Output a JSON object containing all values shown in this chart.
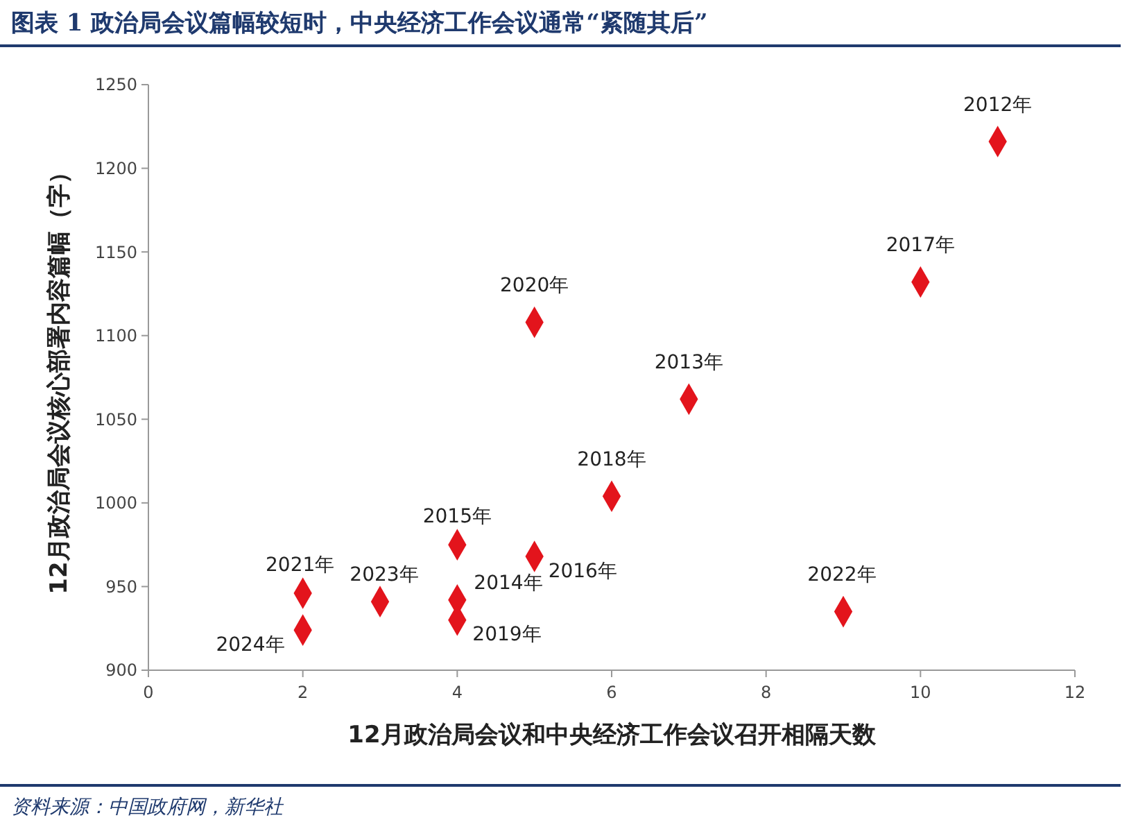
{
  "chart_data": {
    "type": "scatter",
    "title": "图表 1   政治局会议篇幅较短时，中央经济工作会议通常“紧随其后”",
    "xlabel": "12月政治局会议和中央经济工作会议召开相隔天数",
    "ylabel": "12月政治局会议核心部署内容篇幅（字）",
    "x": [
      11,
      10,
      5,
      7,
      6,
      4,
      5,
      2,
      3,
      4,
      4,
      9,
      2
    ],
    "values": [
      1216,
      1132,
      1108,
      1062,
      1004,
      975,
      968,
      946,
      941,
      942,
      930,
      935,
      924
    ],
    "color": "#e3141c",
    "marker": "diamond",
    "grid": false,
    "xlim": [
      0,
      12
    ],
    "xticks": [
      0,
      2,
      4,
      6,
      8,
      10,
      12
    ],
    "ylim": [
      900,
      1250
    ],
    "yticks": [
      900,
      950,
      1000,
      1050,
      1100,
      1150,
      1200,
      1250
    ],
    "annotations": [
      {
        "text": "2012年",
        "x": 11,
        "y": 1216
      },
      {
        "text": "2017年",
        "x": 10,
        "y": 1132
      },
      {
        "text": "2020年",
        "x": 5,
        "y": 1108
      },
      {
        "text": "2013年",
        "x": 7,
        "y": 1062
      },
      {
        "text": "2018年",
        "x": 6,
        "y": 1004
      },
      {
        "text": "2015年",
        "x": 4,
        "y": 975
      },
      {
        "text": "2016年",
        "x": 5,
        "y": 968
      },
      {
        "text": "2021年",
        "x": 2,
        "y": 946
      },
      {
        "text": "2023年",
        "x": 3,
        "y": 941
      },
      {
        "text": "2014年",
        "x": 4,
        "y": 942
      },
      {
        "text": "2019年",
        "x": 4,
        "y": 930
      },
      {
        "text": "2022年",
        "x": 9,
        "y": 935
      },
      {
        "text": "2024年",
        "x": 2,
        "y": 924
      },
      "资料来源：中国政府网，新华社"
    ]
  }
}
